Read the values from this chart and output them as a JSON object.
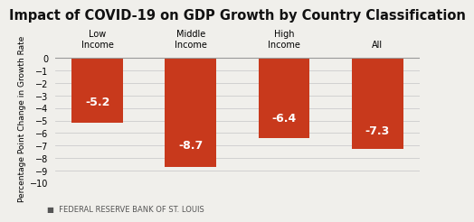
{
  "title": "Impact of COVID-19 on GDP Growth by Country Classification",
  "categories": [
    "Low\nIncome",
    "Middle\nIncome",
    "High\nIncome",
    "All"
  ],
  "values": [
    -5.2,
    -8.7,
    -6.4,
    -7.3
  ],
  "bar_color": "#c8391c",
  "label_color": "#ffffff",
  "ylabel": "Percentage Point Change in Growth Rate",
  "ylim": [
    -10,
    0.3
  ],
  "yticks": [
    0,
    -1,
    -2,
    -3,
    -4,
    -5,
    -6,
    -7,
    -8,
    -9,
    -10
  ],
  "background_color": "#f0efeb",
  "footer_text": "■  FEDERAL RESERVE BANK OF ST. LOUIS",
  "title_fontsize": 10.5,
  "bar_label_fontsize": 9,
  "footer_fontsize": 6,
  "ylabel_fontsize": 6.5,
  "xtick_fontsize": 7,
  "ytick_fontsize": 7
}
